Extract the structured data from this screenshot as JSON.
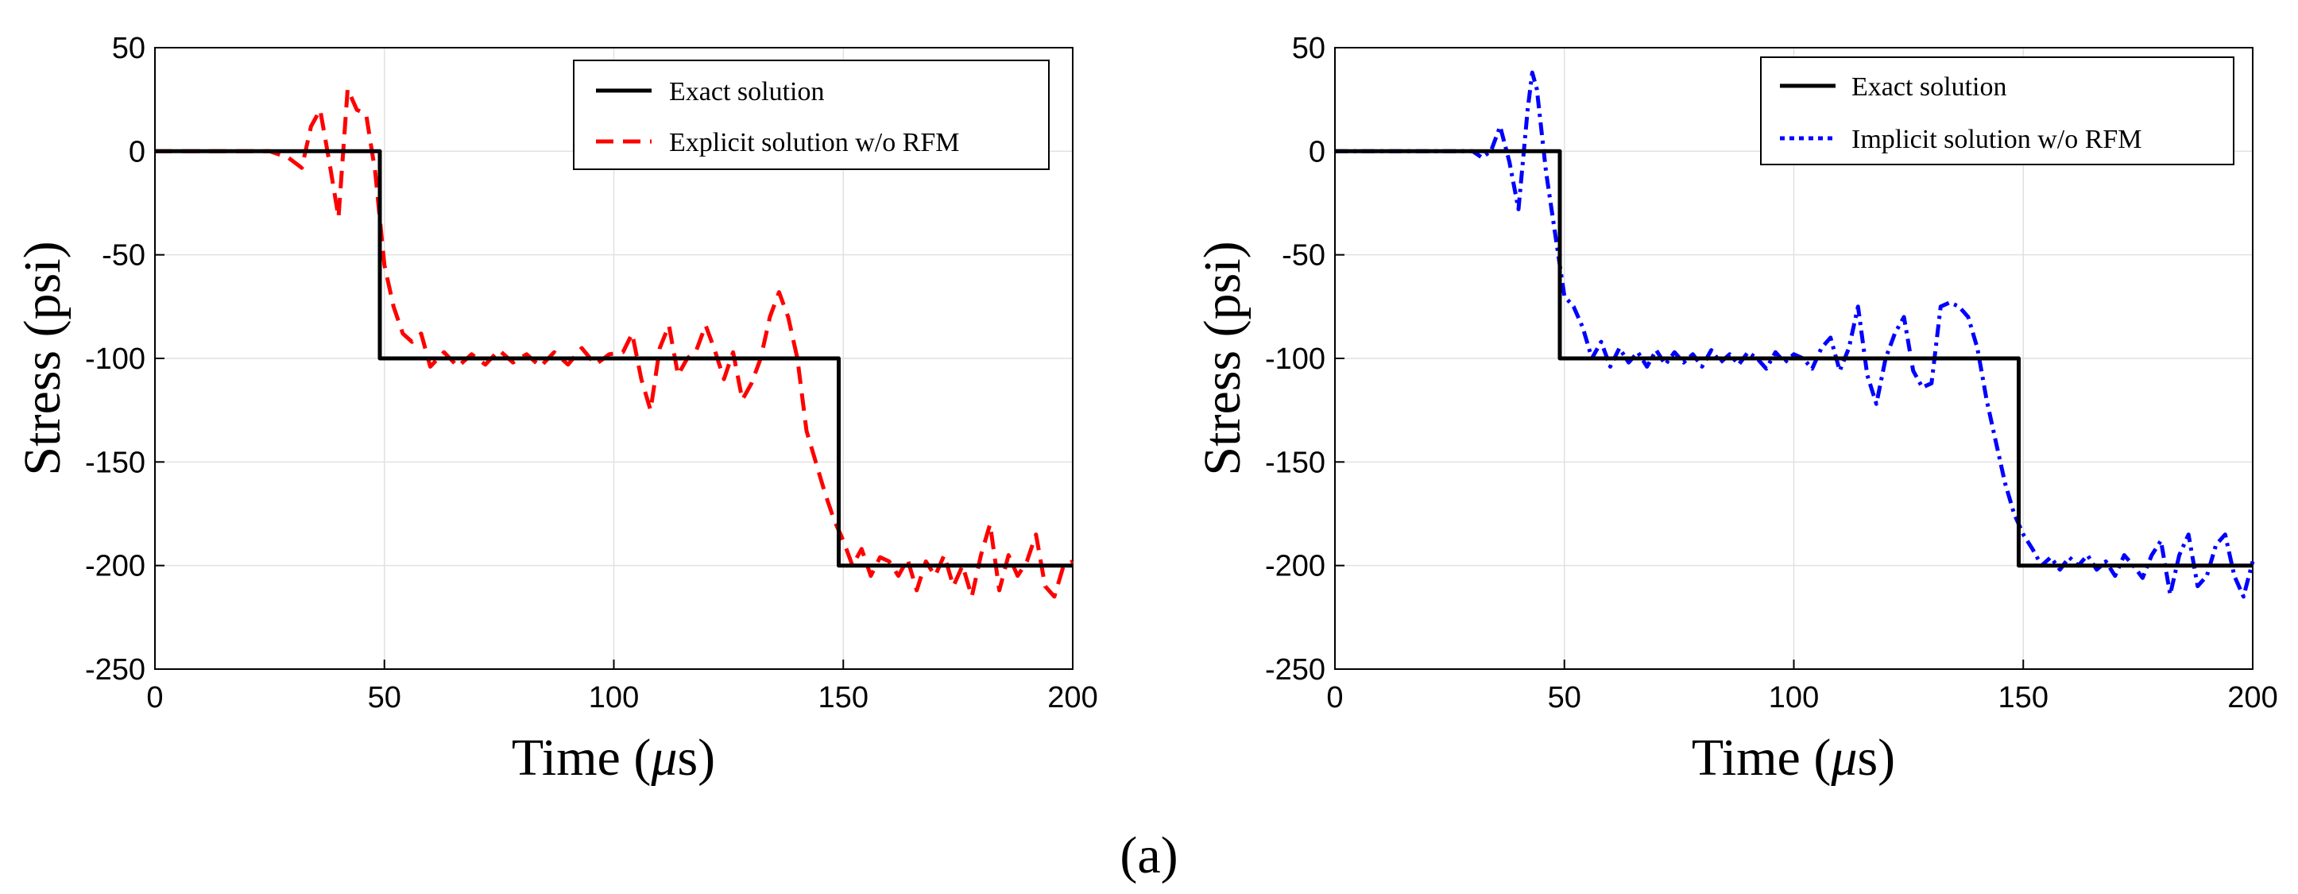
{
  "caption": "(a)",
  "chart_data": [
    {
      "type": "line",
      "title": "",
      "xlabel_prefix": "Time (",
      "xlabel_mu": "μ",
      "xlabel_suffix": "s)",
      "ylabel": "Stress (psi)",
      "xlim": [
        0,
        200
      ],
      "ylim": [
        -250,
        50
      ],
      "xticks": [
        "0",
        "50",
        "100",
        "150",
        "200"
      ],
      "yticks": [
        "50",
        "0",
        "-50",
        "-100",
        "-150",
        "-200",
        "-250"
      ],
      "grid": true,
      "legend_position": "top-right",
      "series": [
        {
          "name": "Exact solution",
          "color": "#000000",
          "style": "solid",
          "x": [
            0,
            49,
            49,
            149,
            149,
            200
          ],
          "y": [
            0,
            0,
            -100,
            -100,
            -200,
            -200
          ]
        },
        {
          "name": "Explicit solution w/o RFM",
          "color": "#ff0000",
          "style": "dashed",
          "x": [
            0,
            25,
            29,
            32,
            34,
            36,
            38,
            40,
            42,
            44,
            46,
            48,
            50,
            52,
            54,
            56,
            58,
            60,
            63,
            66,
            69,
            72,
            75,
            78,
            81,
            84,
            87,
            90,
            93,
            96,
            99,
            102,
            104,
            106,
            108,
            110,
            112,
            114,
            116,
            118,
            120,
            122,
            124,
            126,
            128,
            130,
            132,
            134,
            136,
            138,
            140,
            142,
            144,
            146,
            148,
            150,
            152,
            154,
            156,
            158,
            160,
            162,
            164,
            166,
            168,
            170,
            172,
            174,
            176,
            178,
            180,
            182,
            184,
            186,
            188,
            190,
            192,
            194,
            196,
            198,
            200
          ],
          "y": [
            0,
            0,
            -3,
            -8,
            12,
            20,
            -5,
            -32,
            30,
            20,
            18,
            -10,
            -55,
            -75,
            -88,
            -92,
            -88,
            -104,
            -97,
            -104,
            -98,
            -103,
            -96,
            -102,
            -98,
            -104,
            -97,
            -103,
            -95,
            -103,
            -98,
            -97,
            -88,
            -110,
            -125,
            -95,
            -84,
            -108,
            -100,
            -96,
            -84,
            -96,
            -110,
            -97,
            -120,
            -112,
            -100,
            -80,
            -68,
            -80,
            -100,
            -135,
            -150,
            -165,
            -178,
            -188,
            -200,
            -192,
            -205,
            -196,
            -198,
            -205,
            -197,
            -212,
            -198,
            -205,
            -195,
            -210,
            -200,
            -215,
            -195,
            -180,
            -212,
            -195,
            -205,
            -198,
            -185,
            -210,
            -215,
            -200,
            -198
          ]
        }
      ]
    },
    {
      "type": "line",
      "title": "",
      "xlabel_prefix": "Time (",
      "xlabel_mu": "μ",
      "xlabel_suffix": "s)",
      "ylabel": "Stress (psi)",
      "xlim": [
        0,
        200
      ],
      "ylim": [
        -250,
        50
      ],
      "xticks": [
        "0",
        "50",
        "100",
        "150",
        "200"
      ],
      "yticks": [
        "50",
        "0",
        "-50",
        "-100",
        "-150",
        "-200",
        "-250"
      ],
      "grid": true,
      "legend_position": "top-right",
      "series": [
        {
          "name": "Exact solution",
          "color": "#000000",
          "style": "solid",
          "x": [
            0,
            49,
            49,
            149,
            149,
            200
          ],
          "y": [
            0,
            0,
            -100,
            -100,
            -200,
            -200
          ]
        },
        {
          "name": "Implicit solution w/o RFM",
          "color": "#0000ff",
          "style": "dashdot",
          "x": [
            0,
            30,
            32,
            34,
            36,
            38,
            40,
            42,
            43,
            44,
            46,
            48,
            50,
            52,
            54,
            56,
            58,
            60,
            62,
            64,
            66,
            68,
            70,
            72,
            74,
            76,
            78,
            80,
            82,
            84,
            86,
            88,
            90,
            92,
            94,
            96,
            98,
            100,
            102,
            104,
            106,
            108,
            110,
            112,
            114,
            116,
            118,
            120,
            122,
            124,
            126,
            128,
            130,
            132,
            134,
            136,
            138,
            140,
            142,
            144,
            146,
            148,
            150,
            152,
            154,
            156,
            158,
            160,
            162,
            164,
            166,
            168,
            170,
            172,
            174,
            176,
            178,
            180,
            182,
            184,
            186,
            188,
            190,
            192,
            194,
            196,
            198,
            200
          ],
          "y": [
            0,
            0,
            -3,
            0,
            12,
            -5,
            -28,
            20,
            38,
            30,
            -10,
            -40,
            -70,
            -75,
            -85,
            -100,
            -92,
            -104,
            -95,
            -102,
            -97,
            -104,
            -96,
            -103,
            -97,
            -102,
            -98,
            -104,
            -96,
            -102,
            -98,
            -103,
            -97,
            -100,
            -105,
            -97,
            -102,
            -98,
            -100,
            -105,
            -95,
            -90,
            -106,
            -95,
            -75,
            -108,
            -122,
            -100,
            -88,
            -80,
            -106,
            -114,
            -112,
            -75,
            -73,
            -75,
            -80,
            -95,
            -120,
            -140,
            -160,
            -175,
            -185,
            -192,
            -200,
            -196,
            -202,
            -196,
            -200,
            -195,
            -202,
            -198,
            -205,
            -195,
            -200,
            -206,
            -195,
            -188,
            -214,
            -195,
            -185,
            -210,
            -205,
            -190,
            -185,
            -205,
            -215,
            -198
          ]
        }
      ]
    }
  ]
}
